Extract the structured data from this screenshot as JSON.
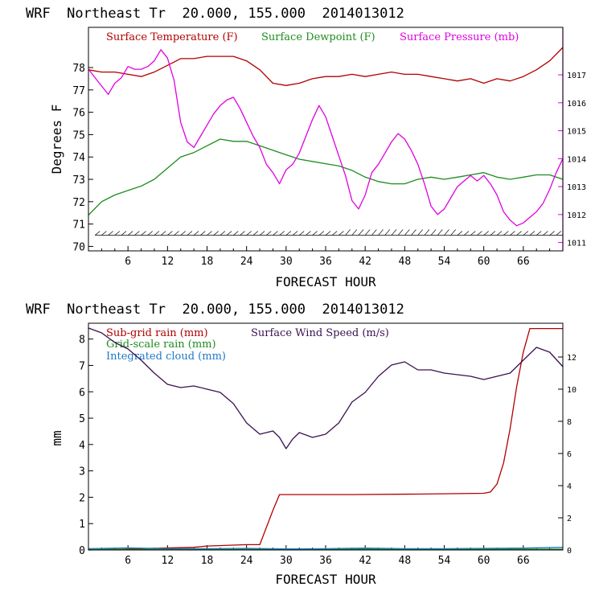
{
  "chart_data": [
    {
      "type": "line",
      "title": "WRF  Northeast Tr  20.000, 155.000  2014013012",
      "xlabel": "FORECAST HOUR",
      "ylabel": "Degrees F",
      "xlim": [
        0,
        72
      ],
      "ylim": [
        69.8,
        79.8
      ],
      "y2lim": [
        1010.7,
        1018.7
      ],
      "xticks": [
        "6",
        "12",
        "18",
        "24",
        "30",
        "36",
        "42",
        "48",
        "54",
        "60",
        "66"
      ],
      "yticks": [
        "70",
        "71",
        "72",
        "73",
        "74",
        "75",
        "76",
        "77",
        "78"
      ],
      "y2ticks": [
        "1011",
        "1012",
        "1013",
        "1014",
        "1015",
        "1016",
        "1017"
      ],
      "legend": [
        {
          "label": "Surface Temperature (F)",
          "color": "#b00000"
        },
        {
          "label": "Surface Dewpoint (F)",
          "color": "#1e8c1e"
        },
        {
          "label": "Surface Pressure (mb)",
          "color": "#e000e0"
        }
      ],
      "series": [
        {
          "name": "Surface Temperature (F)",
          "axis": "left",
          "color": "#b00000",
          "x": [
            0,
            2,
            4,
            6,
            8,
            10,
            12,
            14,
            16,
            18,
            20,
            22,
            24,
            26,
            28,
            30,
            32,
            34,
            36,
            38,
            40,
            42,
            44,
            46,
            48,
            50,
            52,
            54,
            56,
            58,
            60,
            62,
            64,
            66,
            68,
            70,
            72
          ],
          "values": [
            77.9,
            77.8,
            77.8,
            77.7,
            77.6,
            77.8,
            78.1,
            78.4,
            78.4,
            78.5,
            78.5,
            78.5,
            78.3,
            77.9,
            77.3,
            77.2,
            77.3,
            77.5,
            77.6,
            77.6,
            77.7,
            77.6,
            77.7,
            77.8,
            77.7,
            77.7,
            77.6,
            77.5,
            77.4,
            77.5,
            77.3,
            77.5,
            77.4,
            77.6,
            77.9,
            78.3,
            78.9
          ]
        },
        {
          "name": "Surface Dewpoint (F)",
          "axis": "left",
          "color": "#1e8c1e",
          "x": [
            0,
            2,
            4,
            6,
            8,
            10,
            12,
            14,
            16,
            18,
            20,
            22,
            24,
            26,
            28,
            30,
            32,
            34,
            36,
            38,
            40,
            42,
            44,
            46,
            48,
            50,
            52,
            54,
            56,
            58,
            60,
            62,
            64,
            66,
            68,
            70,
            72
          ],
          "values": [
            71.4,
            72.0,
            72.3,
            72.5,
            72.7,
            73.0,
            73.5,
            74.0,
            74.2,
            74.5,
            74.8,
            74.7,
            74.7,
            74.5,
            74.3,
            74.1,
            73.9,
            73.8,
            73.7,
            73.6,
            73.4,
            73.1,
            72.9,
            72.8,
            72.8,
            73.0,
            73.1,
            73.0,
            73.1,
            73.2,
            73.3,
            73.1,
            73.0,
            73.1,
            73.2,
            73.2,
            73.0
          ]
        },
        {
          "name": "Surface Pressure (mb)",
          "axis": "right",
          "color": "#e000e0",
          "x": [
            0,
            1,
            2,
            3,
            4,
            5,
            6,
            7,
            8,
            9,
            10,
            11,
            12,
            13,
            14,
            15,
            16,
            17,
            18,
            19,
            20,
            21,
            22,
            23,
            24,
            25,
            26,
            27,
            28,
            29,
            30,
            31,
            32,
            33,
            34,
            35,
            36,
            37,
            38,
            39,
            40,
            41,
            42,
            43,
            44,
            45,
            46,
            47,
            48,
            49,
            50,
            51,
            52,
            53,
            54,
            55,
            56,
            57,
            58,
            59,
            60,
            61,
            62,
            63,
            64,
            65,
            66,
            67,
            68,
            69,
            70,
            71,
            72
          ],
          "values": [
            1017.2,
            1016.9,
            1016.6,
            1016.3,
            1016.7,
            1016.9,
            1017.3,
            1017.2,
            1017.2,
            1017.3,
            1017.5,
            1017.9,
            1017.6,
            1016.8,
            1015.3,
            1014.6,
            1014.4,
            1014.8,
            1015.2,
            1015.6,
            1015.9,
            1016.1,
            1016.2,
            1015.8,
            1015.3,
            1014.8,
            1014.4,
            1013.8,
            1013.5,
            1013.1,
            1013.6,
            1013.8,
            1014.2,
            1014.8,
            1015.4,
            1015.9,
            1015.5,
            1014.8,
            1014.1,
            1013.4,
            1012.5,
            1012.2,
            1012.7,
            1013.5,
            1013.8,
            1014.2,
            1014.6,
            1014.9,
            1014.7,
            1014.3,
            1013.8,
            1013.1,
            1012.3,
            1012.0,
            1012.2,
            1012.6,
            1013.0,
            1013.2,
            1013.4,
            1013.2,
            1013.4,
            1013.1,
            1012.7,
            1012.1,
            1011.8,
            1011.6,
            1011.7,
            1011.9,
            1012.1,
            1012.4,
            1012.9,
            1013.5,
            1014.0
          ]
        }
      ],
      "wind_barbs_at_y": 70.5
    },
    {
      "type": "line",
      "title": "WRF  Northeast Tr  20.000, 155.000  2014013012",
      "xlabel": "FORECAST HOUR",
      "ylabel": "mm",
      "xlim": [
        0,
        72
      ],
      "ylim": [
        0,
        8.6
      ],
      "y2lim": [
        0,
        14.1
      ],
      "xticks": [
        "6",
        "12",
        "18",
        "24",
        "30",
        "36",
        "42",
        "48",
        "54",
        "60",
        "66"
      ],
      "yticks": [
        "0",
        "1",
        "2",
        "3",
        "4",
        "5",
        "6",
        "7",
        "8"
      ],
      "y2ticks": [
        "0",
        "2",
        "4",
        "6",
        "8",
        "10",
        "12"
      ],
      "legend": [
        {
          "label": "Sub-grid rain (mm)",
          "color": "#b00000"
        },
        {
          "label": "Grid-scale rain (mm)",
          "color": "#1e8c1e"
        },
        {
          "label": "Integrated cloud (mm)",
          "color": "#1e78c8"
        },
        {
          "label": "Surface Wind Speed (m/s)",
          "color": "#3a1050"
        }
      ],
      "series": [
        {
          "name": "Sub-grid rain (mm)",
          "axis": "left",
          "color": "#b00000",
          "x": [
            0,
            16,
            18,
            24,
            26,
            28,
            29,
            40,
            50,
            60,
            61,
            62,
            63,
            64,
            65,
            66,
            67,
            68,
            72
          ],
          "values": [
            0,
            0.1,
            0.15,
            0.2,
            0.2,
            1.5,
            2.1,
            2.1,
            2.12,
            2.15,
            2.2,
            2.5,
            3.3,
            4.6,
            6.2,
            7.5,
            8.4,
            8.4,
            8.4
          ]
        },
        {
          "name": "Grid-scale rain (mm)",
          "axis": "left",
          "color": "#1e8c1e",
          "x": [
            0,
            72
          ],
          "values": [
            0.02,
            0.03
          ]
        },
        {
          "name": "Integrated cloud (mm)",
          "axis": "left",
          "color": "#1e78c8",
          "x": [
            0,
            6,
            12,
            18,
            24,
            30,
            36,
            42,
            48,
            54,
            60,
            66,
            72
          ],
          "values": [
            0.05,
            0.08,
            0.05,
            0.05,
            0.06,
            0.04,
            0.05,
            0.07,
            0.05,
            0.05,
            0.06,
            0.07,
            0.1
          ]
        },
        {
          "name": "Surface Wind Speed (m/s)",
          "axis": "right",
          "color": "#3a1050",
          "x": [
            0,
            2,
            4,
            6,
            8,
            10,
            12,
            14,
            16,
            18,
            20,
            22,
            24,
            26,
            28,
            29,
            30,
            31,
            32,
            34,
            36,
            38,
            40,
            42,
            44,
            46,
            48,
            50,
            52,
            54,
            56,
            58,
            60,
            62,
            64,
            66,
            68,
            70,
            72
          ],
          "values": [
            13.8,
            13.5,
            12.9,
            12.5,
            11.8,
            11.0,
            10.3,
            10.1,
            10.2,
            10.0,
            9.8,
            9.1,
            7.9,
            7.2,
            7.4,
            7.0,
            6.3,
            6.9,
            7.3,
            7.0,
            7.2,
            7.9,
            9.2,
            9.8,
            10.8,
            11.5,
            11.7,
            11.2,
            11.2,
            11.0,
            10.9,
            10.8,
            10.6,
            10.8,
            11.0,
            11.8,
            12.6,
            12.3,
            11.4
          ]
        }
      ]
    }
  ]
}
